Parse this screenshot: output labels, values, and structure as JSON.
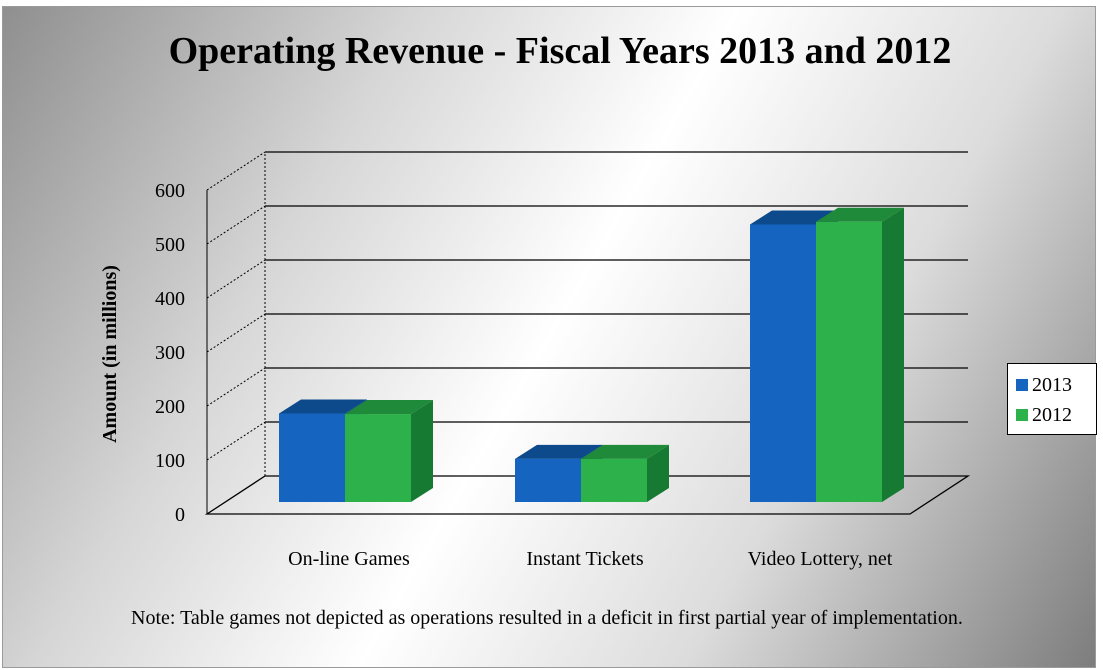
{
  "chart_data": {
    "type": "bar",
    "title": "Operating Revenue - Fiscal Years 2013 and 2012",
    "ylabel": "Amount (in millions)",
    "xlabel": "",
    "categories": [
      "On-line Games",
      "Instant Tickets",
      "Video Lottery, net"
    ],
    "series": [
      {
        "name": "2013",
        "values": [
          175,
          91,
          525
        ],
        "color": "#1565C0",
        "top_color": "#0d4a8c",
        "side_color": "#0b3f78"
      },
      {
        "name": "2012",
        "values": [
          174,
          91,
          530
        ],
        "color": "#2DB24B",
        "top_color": "#1f8a39",
        "side_color": "#167a32"
      }
    ],
    "ylim": [
      0,
      600
    ],
    "yticks": [
      "0",
      "100",
      "200",
      "300",
      "400",
      "500",
      "600"
    ],
    "grid": true,
    "legend": "right",
    "style": "3d-clustered-column"
  },
  "note": "Note: Table games not depicted as operations resulted in a deficit in first partial year of implementation."
}
